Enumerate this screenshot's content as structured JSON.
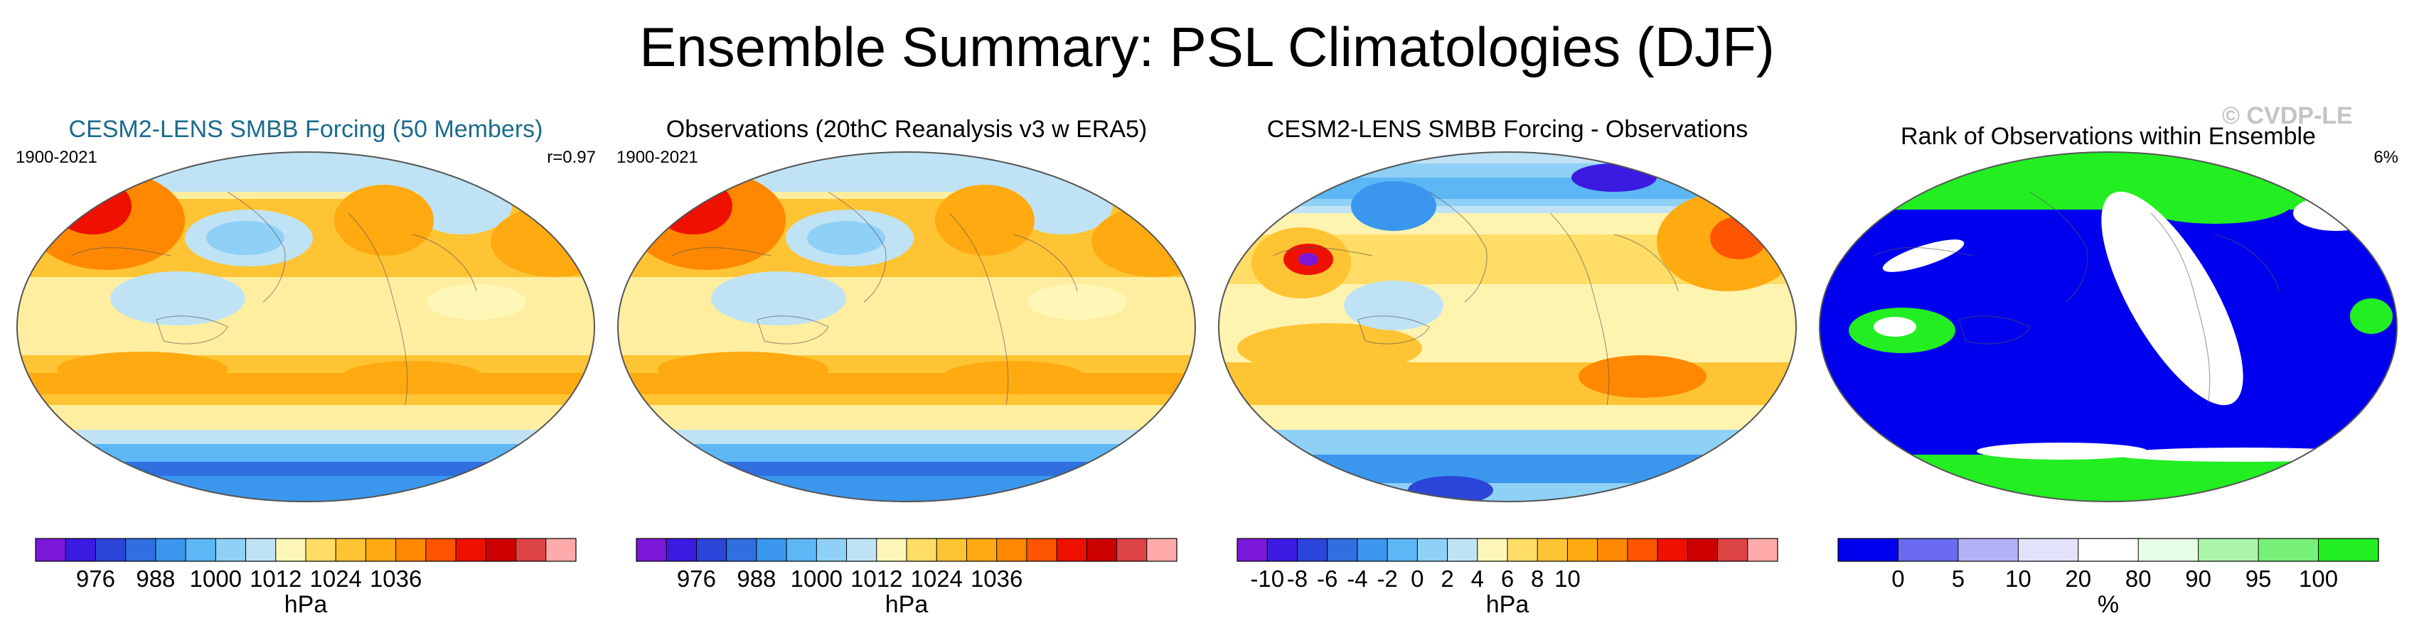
{
  "title": "Ensemble Summary: PSL Climatologies (DJF)",
  "watermark": "© CVDP-LE",
  "panels": [
    {
      "id": "cesm2",
      "title": "CESM2-LENS SMBB Forcing (50 Members)",
      "left_label": "1900-2021",
      "right_label": "r=0.97",
      "map_style": "psl",
      "colorbar": {
        "colors": [
          "#7b18d8",
          "#3b1be0",
          "#2b45d8",
          "#2f6fe0",
          "#3b97ee",
          "#5db7f5",
          "#8fd0f7",
          "#bfe3f5",
          "#fff7b8",
          "#ffdd66",
          "#ffc433",
          "#ffaa11",
          "#ff8800",
          "#ff5500",
          "#ee1100",
          "#cc0000",
          "#dd4444",
          "#ffaaaa"
        ],
        "labels": [
          "976",
          "988",
          "1000",
          "1012",
          "1024",
          "1036"
        ],
        "label_positions": [
          2,
          4,
          6,
          8,
          10,
          12
        ],
        "unit": "hPa"
      }
    },
    {
      "id": "obs",
      "title": "Observations (20thC Reanalysis v3 w ERA5)",
      "left_label": "1900-2021",
      "right_label": "",
      "map_style": "psl",
      "colorbar": {
        "colors": [
          "#7b18d8",
          "#3b1be0",
          "#2b45d8",
          "#2f6fe0",
          "#3b97ee",
          "#5db7f5",
          "#8fd0f7",
          "#bfe3f5",
          "#fff7b8",
          "#ffdd66",
          "#ffc433",
          "#ffaa11",
          "#ff8800",
          "#ff5500",
          "#ee1100",
          "#cc0000",
          "#dd4444",
          "#ffaaaa"
        ],
        "labels": [
          "976",
          "988",
          "1000",
          "1012",
          "1024",
          "1036"
        ],
        "label_positions": [
          2,
          4,
          6,
          8,
          10,
          12
        ],
        "unit": "hPa"
      }
    },
    {
      "id": "diff",
      "title": "CESM2-LENS SMBB Forcing - Observations",
      "left_label": "",
      "right_label": "",
      "map_style": "diff",
      "colorbar": {
        "colors": [
          "#7b18d8",
          "#3b1be0",
          "#2b45d8",
          "#2f6fe0",
          "#3b97ee",
          "#5db7f5",
          "#8fd0f7",
          "#bfe3f5",
          "#fff7b8",
          "#ffdd66",
          "#ffc433",
          "#ffaa11",
          "#ff8800",
          "#ff5500",
          "#ee1100",
          "#cc0000",
          "#dd4444",
          "#ffaaaa"
        ],
        "labels": [
          "-10",
          "-8",
          "-6",
          "-4",
          "-2",
          "0",
          "2",
          "4",
          "6",
          "8",
          "10"
        ],
        "label_positions": [
          1,
          2,
          3,
          4,
          5,
          6,
          7,
          8,
          9,
          10,
          11
        ],
        "unit": "hPa"
      }
    },
    {
      "id": "rank",
      "title": "Rank of Observations within Ensemble",
      "left_label": "",
      "right_label": "6%",
      "map_style": "rank",
      "colorbar": {
        "colors": [
          "#0000ee",
          "#6a6af2",
          "#b2b2f7",
          "#e2e2fb",
          "#ffffff",
          "#e6fde6",
          "#aaf5aa",
          "#77f077",
          "#22ee22"
        ],
        "labels": [
          "0",
          "5",
          "10",
          "20",
          "80",
          "90",
          "95",
          "100"
        ],
        "label_positions": [
          1,
          2,
          3,
          4,
          5,
          6,
          7,
          8
        ],
        "unit": "%"
      }
    }
  ]
}
